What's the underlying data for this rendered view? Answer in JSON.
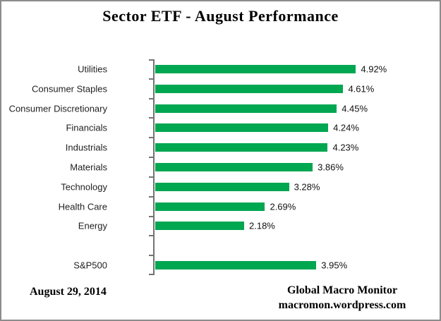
{
  "title": "Sector ETF - August Performance",
  "footer": {
    "date": "August 29, 2014",
    "source_line1": "Global Macro Monitor",
    "source_line2": "macromon.wordpress.com"
  },
  "colors": {
    "bar": "#00A751",
    "axis": "#737373",
    "border": "#8C8C8C",
    "label_text": "#1F1F1F"
  },
  "chart_data": {
    "type": "bar",
    "orientation": "horizontal",
    "title": "Sector ETF - August Performance",
    "xlabel": "",
    "ylabel": "",
    "xlim": [
      0,
      5
    ],
    "grid": false,
    "legend": false,
    "value_suffix": "%",
    "rows": [
      {
        "category": "Utilities",
        "value": 4.92,
        "label": "4.92%"
      },
      {
        "category": "Consumer Staples",
        "value": 4.61,
        "label": "4.61%"
      },
      {
        "category": "Consumer Discretionary",
        "value": 4.45,
        "label": "4.45%"
      },
      {
        "category": "Financials",
        "value": 4.24,
        "label": "4.24%"
      },
      {
        "category": "Industrials",
        "value": 4.23,
        "label": "4.23%"
      },
      {
        "category": "Materials",
        "value": 3.86,
        "label": "3.86%"
      },
      {
        "category": "Technology",
        "value": 3.28,
        "label": "3.28%"
      },
      {
        "category": "Health Care",
        "value": 2.69,
        "label": "2.69%"
      },
      {
        "category": "Energy",
        "value": 2.18,
        "label": "2.18%"
      },
      {
        "category": "",
        "value": null,
        "label": "",
        "gap": true
      },
      {
        "category": "S&P500",
        "value": 3.95,
        "label": "3.95%"
      }
    ]
  }
}
